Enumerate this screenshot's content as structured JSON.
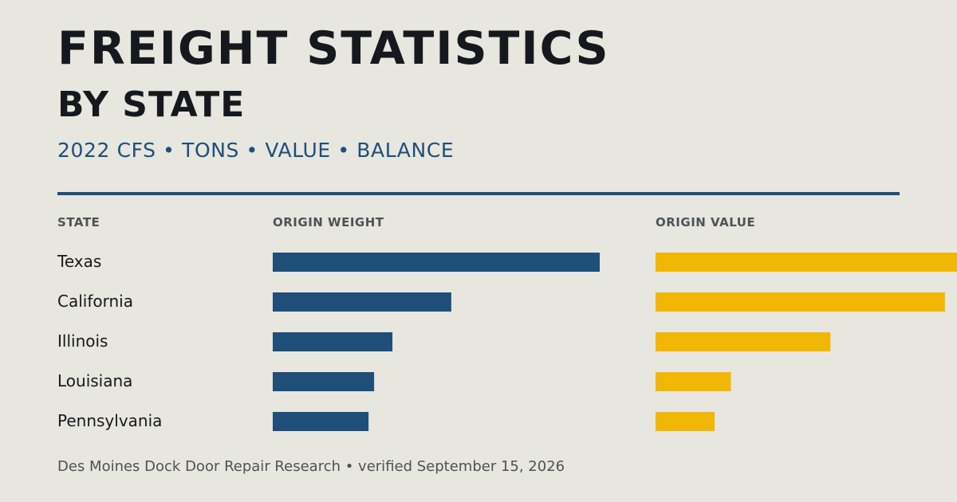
{
  "header": {
    "title": "FREIGHT STATISTICS",
    "subtitle": "BY STATE",
    "tagline": "2022 CFS • TONS • VALUE • BALANCE"
  },
  "columns": {
    "state": "STATE",
    "weight": "ORIGIN WEIGHT",
    "value": "ORIGIN VALUE"
  },
  "colors": {
    "weight": "#1f4e79",
    "value": "#f2b705",
    "background": "#e7e6df"
  },
  "chart_data": {
    "type": "bar",
    "categories": [
      "Texas",
      "California",
      "Illinois",
      "Louisiana",
      "Pennsylvania"
    ],
    "series": [
      {
        "values": [
          1.0,
          0.546,
          0.366,
          0.31,
          0.293
        ]
      },
      {
        "values": [
          1.0,
          0.96,
          0.58,
          0.25,
          0.196
        ]
      }
    ],
    "orientation": "horizontal",
    "grid": false,
    "legend": "none"
  },
  "footer": {
    "text": "Des Moines Dock Door Repair Research • verified September 15, 2026"
  }
}
